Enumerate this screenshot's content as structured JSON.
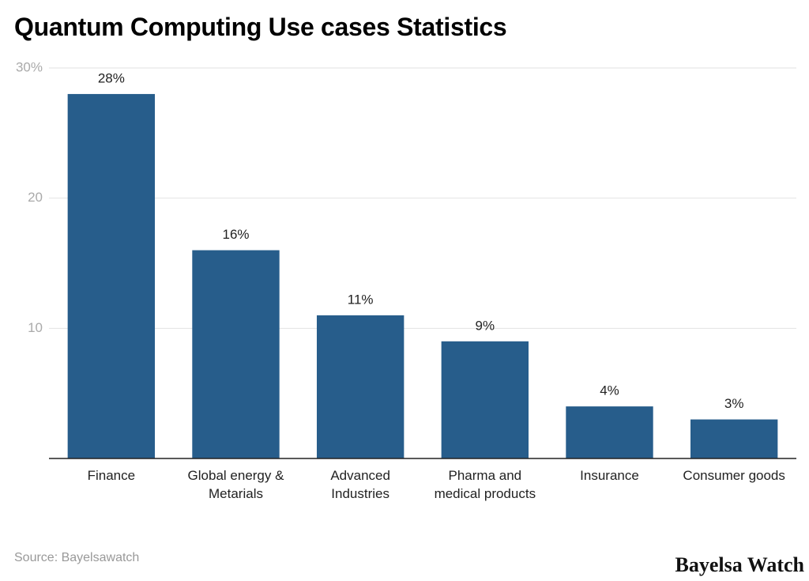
{
  "chart_data": {
    "type": "bar",
    "title": "Quantum Computing Use cases Statistics",
    "categories": [
      "Finance",
      "Global energy & Metarials",
      "Advanced Industries",
      "Pharma and medical products",
      "Insurance",
      "Consumer goods"
    ],
    "values": [
      28,
      16,
      11,
      9,
      4,
      3
    ],
    "value_labels": [
      "28%",
      "16%",
      "11%",
      "9%",
      "4%",
      "3%"
    ],
    "color": "#275d8b",
    "ylim": [
      0,
      30
    ],
    "yticks": [
      {
        "value": 30,
        "label": "30%"
      },
      20,
      10
    ],
    "grid": true,
    "source": "Source: Bayelsawatch",
    "brand": "Bayelsa Watch"
  }
}
